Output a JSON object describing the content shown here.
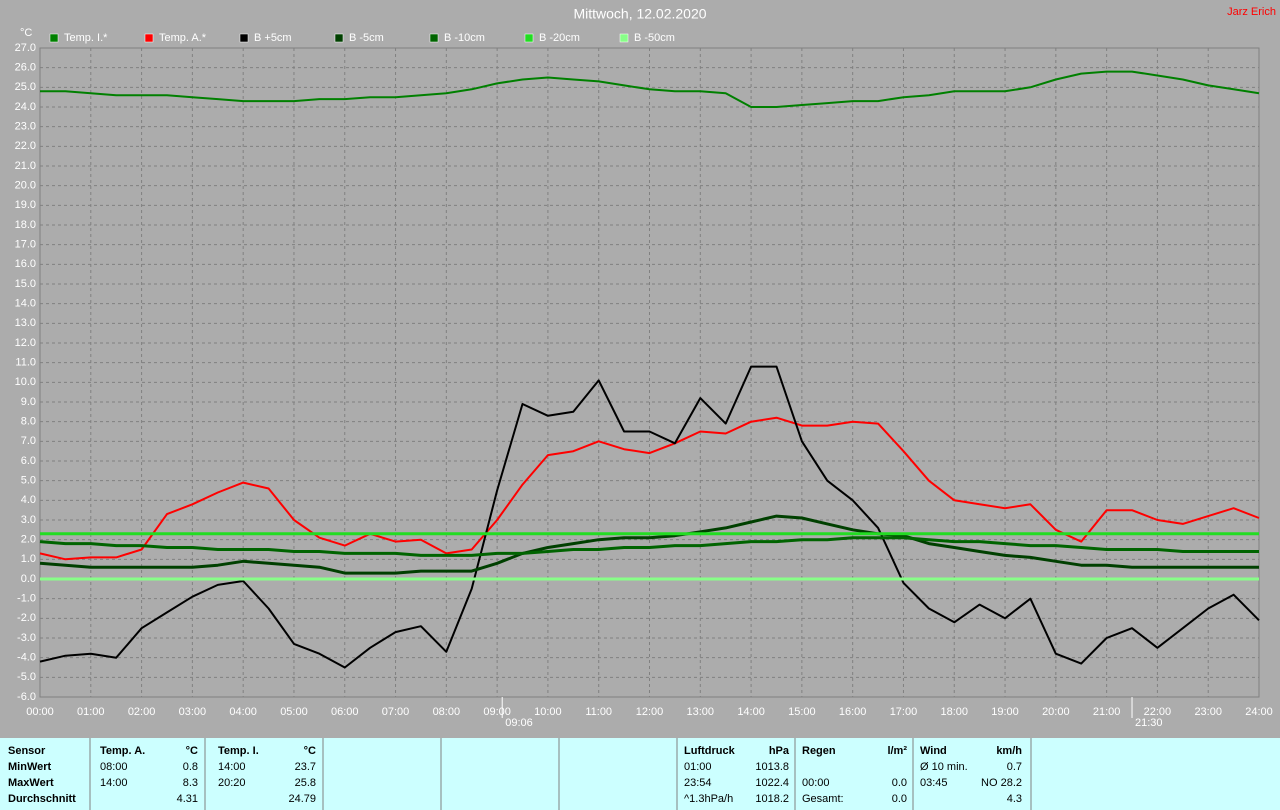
{
  "chart_data": {
    "type": "line",
    "title": "Mittwoch, 12.02.2020",
    "author": "Jarz Erich",
    "y_unit": "°C",
    "grid": true,
    "x": [
      0,
      0.5,
      1,
      1.5,
      2,
      2.5,
      3,
      3.5,
      4,
      4.5,
      5,
      5.5,
      6,
      6.5,
      7,
      7.5,
      8,
      8.5,
      9,
      9.5,
      10,
      10.5,
      11,
      11.5,
      12,
      12.5,
      13,
      13.5,
      14,
      14.5,
      15,
      15.5,
      16,
      16.5,
      17,
      17.5,
      18,
      18.5,
      19,
      19.5,
      20,
      20.5,
      21,
      21.5,
      22,
      22.5,
      23,
      23.5,
      24
    ],
    "xlim": [
      0,
      24
    ],
    "xticks": [
      {
        "value": 0,
        "label": "00:00"
      },
      {
        "value": 1,
        "label": "01:00"
      },
      {
        "value": 2,
        "label": "02:00"
      },
      {
        "value": 3,
        "label": "03:00"
      },
      {
        "value": 4,
        "label": "04:00"
      },
      {
        "value": 5,
        "label": "05:00"
      },
      {
        "value": 6,
        "label": "06:00"
      },
      {
        "value": 7,
        "label": "07:00"
      },
      {
        "value": 8,
        "label": "08:00"
      },
      {
        "value": 9,
        "label": "09:00"
      },
      {
        "value": 10,
        "label": "10:00"
      },
      {
        "value": 11,
        "label": "11:00"
      },
      {
        "value": 12,
        "label": "12:00"
      },
      {
        "value": 13,
        "label": "13:00"
      },
      {
        "value": 14,
        "label": "14:00"
      },
      {
        "value": 15,
        "label": "15:00"
      },
      {
        "value": 16,
        "label": "16:00"
      },
      {
        "value": 17,
        "label": "17:00"
      },
      {
        "value": 18,
        "label": "18:00"
      },
      {
        "value": 19,
        "label": "19:00"
      },
      {
        "value": 20,
        "label": "20:00"
      },
      {
        "value": 21,
        "label": "21:00"
      },
      {
        "value": 22,
        "label": "22:00"
      },
      {
        "value": 23,
        "label": "23:00"
      },
      {
        "value": 24,
        "label": "24:00"
      }
    ],
    "ylim": [
      -6,
      27
    ],
    "yticks": [
      {
        "value": 27,
        "label": "27.0"
      },
      {
        "value": 26,
        "label": "26.0"
      },
      {
        "value": 25,
        "label": "25.0"
      },
      {
        "value": 24,
        "label": "24.0"
      },
      {
        "value": 23,
        "label": "23.0"
      },
      {
        "value": 22,
        "label": "22.0"
      },
      {
        "value": 21,
        "label": "21.0"
      },
      {
        "value": 20,
        "label": "20.0"
      },
      {
        "value": 19,
        "label": "19.0"
      },
      {
        "value": 18,
        "label": "18.0"
      },
      {
        "value": 17,
        "label": "17.0"
      },
      {
        "value": 16,
        "label": "16.0"
      },
      {
        "value": 15,
        "label": "15.0"
      },
      {
        "value": 14,
        "label": "14.0"
      },
      {
        "value": 13,
        "label": "13.0"
      },
      {
        "value": 12,
        "label": "12.0"
      },
      {
        "value": 11,
        "label": "11.0"
      },
      {
        "value": 10,
        "label": "10.0"
      },
      {
        "value": 9,
        "label": "9.0"
      },
      {
        "value": 8,
        "label": "8.0"
      },
      {
        "value": 7,
        "label": "7.0"
      },
      {
        "value": 6,
        "label": "6.0"
      },
      {
        "value": 5,
        "label": "5.0"
      },
      {
        "value": 4,
        "label": "4.0"
      },
      {
        "value": 3,
        "label": "3.0"
      },
      {
        "value": 2,
        "label": "2.0"
      },
      {
        "value": 1,
        "label": "1.0"
      },
      {
        "value": 0,
        "label": "0.0"
      },
      {
        "value": -1,
        "label": "-1.0"
      },
      {
        "value": -2,
        "label": "-2.0"
      },
      {
        "value": -3,
        "label": "-3.0"
      },
      {
        "value": -4,
        "label": "-4.0"
      },
      {
        "value": -5,
        "label": "-5.0"
      },
      {
        "value": -6,
        "label": "-6.0"
      }
    ],
    "annotations": [
      {
        "x": 9.1,
        "label": "09:06"
      },
      {
        "x": 21.5,
        "label": "21:30"
      }
    ],
    "series": [
      {
        "name": "Temp. I.*",
        "color": "#008000",
        "values": [
          24.8,
          24.8,
          24.7,
          24.6,
          24.6,
          24.6,
          24.5,
          24.4,
          24.3,
          24.3,
          24.3,
          24.4,
          24.4,
          24.5,
          24.5,
          24.6,
          24.7,
          24.9,
          25.2,
          25.4,
          25.5,
          25.4,
          25.3,
          25.1,
          24.9,
          24.8,
          24.8,
          24.7,
          24.0,
          24.0,
          24.1,
          24.2,
          24.3,
          24.3,
          24.5,
          24.6,
          24.8,
          24.8,
          24.8,
          25.0,
          25.4,
          25.7,
          25.8,
          25.8,
          25.6,
          25.4,
          25.1,
          24.9,
          24.7
        ]
      },
      {
        "name": "Temp. A.*",
        "color": "#ff0000",
        "values": [
          1.3,
          1.0,
          1.1,
          1.1,
          1.5,
          3.3,
          3.8,
          4.4,
          4.9,
          4.6,
          3.0,
          2.1,
          1.7,
          2.3,
          1.9,
          2.0,
          1.3,
          1.5,
          3.0,
          4.8,
          6.3,
          6.5,
          7.0,
          6.6,
          6.4,
          6.9,
          7.5,
          7.4,
          8.0,
          8.2,
          7.8,
          7.8,
          8.0,
          7.9,
          6.5,
          5.0,
          4.0,
          3.8,
          3.6,
          3.8,
          2.5,
          1.9,
          3.5,
          3.5,
          3.0,
          2.8,
          3.2,
          3.6,
          3.1
        ]
      },
      {
        "name": "B +5cm",
        "color": "#000000",
        "values": [
          -4.2,
          -3.9,
          -3.8,
          -4.0,
          -2.5,
          -1.7,
          -0.9,
          -0.3,
          -0.1,
          -1.5,
          -3.3,
          -3.8,
          -4.5,
          -3.5,
          -2.7,
          -2.4,
          -3.7,
          -0.5,
          4.5,
          8.9,
          8.3,
          8.5,
          10.1,
          7.5,
          7.5,
          6.9,
          9.2,
          7.9,
          10.8,
          10.8,
          7.0,
          5.0,
          4.0,
          2.6,
          -0.2,
          -1.5,
          -2.2,
          -1.3,
          -2.0,
          -1.0,
          -3.8,
          -4.3,
          -3.0,
          -2.5,
          -3.5,
          -2.5,
          -1.5,
          -0.8,
          -2.1
        ]
      },
      {
        "name": "B -5cm",
        "color": "#004000",
        "values": [
          0.8,
          0.7,
          0.6,
          0.6,
          0.6,
          0.6,
          0.6,
          0.7,
          0.9,
          0.8,
          0.7,
          0.6,
          0.3,
          0.3,
          0.3,
          0.4,
          0.4,
          0.4,
          0.8,
          1.3,
          1.6,
          1.8,
          2.0,
          2.1,
          2.1,
          2.2,
          2.4,
          2.6,
          2.9,
          3.2,
          3.1,
          2.8,
          2.5,
          2.3,
          2.2,
          1.8,
          1.6,
          1.4,
          1.2,
          1.1,
          0.9,
          0.7,
          0.7,
          0.6,
          0.6,
          0.6,
          0.6,
          0.6,
          0.6
        ]
      },
      {
        "name": "B -10cm",
        "color": "#006400",
        "values": [
          1.9,
          1.8,
          1.8,
          1.7,
          1.7,
          1.6,
          1.6,
          1.5,
          1.5,
          1.5,
          1.4,
          1.4,
          1.3,
          1.3,
          1.3,
          1.2,
          1.2,
          1.2,
          1.3,
          1.3,
          1.4,
          1.5,
          1.5,
          1.6,
          1.6,
          1.7,
          1.7,
          1.8,
          1.9,
          1.9,
          2.0,
          2.0,
          2.1,
          2.1,
          2.1,
          2.0,
          1.9,
          1.9,
          1.8,
          1.7,
          1.7,
          1.6,
          1.5,
          1.5,
          1.5,
          1.4,
          1.4,
          1.4,
          1.4
        ]
      },
      {
        "name": "B -20cm",
        "color": "#22dd22",
        "values": [
          2.3,
          2.3,
          2.3,
          2.3,
          2.3,
          2.3,
          2.3,
          2.3,
          2.3,
          2.3,
          2.3,
          2.3,
          2.3,
          2.3,
          2.3,
          2.3,
          2.3,
          2.3,
          2.3,
          2.3,
          2.3,
          2.3,
          2.3,
          2.3,
          2.3,
          2.3,
          2.3,
          2.3,
          2.3,
          2.3,
          2.3,
          2.3,
          2.3,
          2.3,
          2.3,
          2.3,
          2.3,
          2.3,
          2.3,
          2.3,
          2.3,
          2.3,
          2.3,
          2.3,
          2.3,
          2.3,
          2.3,
          2.3,
          2.3
        ]
      },
      {
        "name": "B -50cm",
        "color": "#88ff88",
        "values": [
          0,
          0,
          0,
          0,
          0,
          0,
          0,
          0,
          0,
          0,
          0,
          0,
          0,
          0,
          0,
          0,
          0,
          0,
          0,
          0,
          0,
          0,
          0,
          0,
          0,
          0,
          0,
          0,
          0,
          0,
          0,
          0,
          0,
          0,
          0,
          0,
          0,
          0,
          0,
          0,
          0,
          0,
          0,
          0,
          0,
          0,
          0,
          0,
          0
        ]
      }
    ]
  },
  "table": {
    "rows": [
      [
        "Sensor",
        "Temp. A.",
        "°C",
        "Temp. I.",
        "°C",
        "Luftdruck",
        "hPa",
        "Regen",
        "l/m²",
        "Wind",
        "km/h"
      ],
      [
        "MinWert",
        "08:00",
        "0.8",
        "14:00",
        "23.7",
        "01:00",
        "1013.8",
        null,
        null,
        "Ø 10 min.",
        "0.7"
      ],
      [
        "MaxWert",
        "14:00",
        "8.3",
        "20:20",
        "25.8",
        "23:54",
        "1022.4",
        "00:00",
        "0.0",
        "03:45",
        "NO 28.2"
      ],
      [
        "Durchschnitt",
        null,
        "4.31",
        null,
        "24.79",
        "^1.3hPa/h",
        "1018.2",
        "Gesamt:",
        "0.0",
        null,
        "4.3"
      ]
    ]
  }
}
